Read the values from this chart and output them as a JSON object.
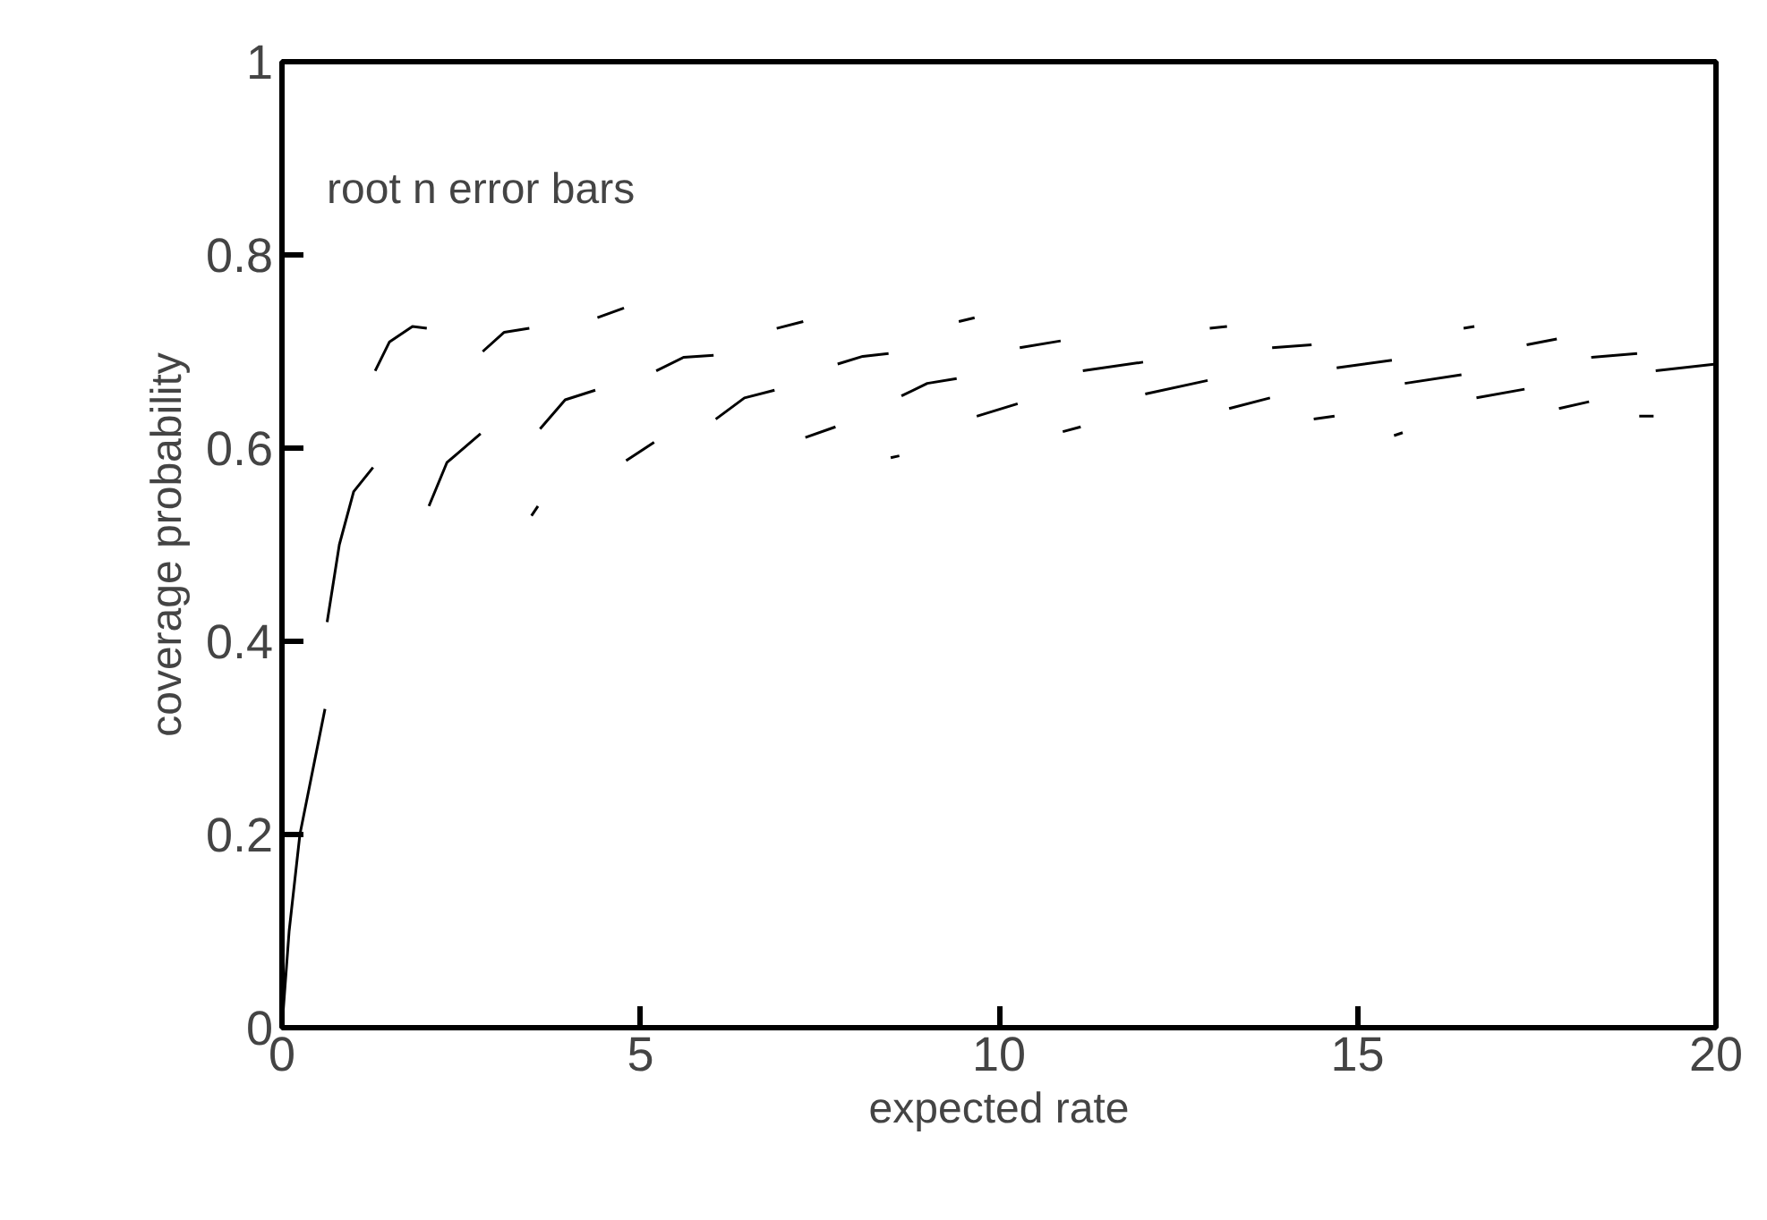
{
  "chart_data": {
    "type": "line",
    "xlabel": "expected rate",
    "ylabel": "coverage probability",
    "annotations": [
      "root  n  error  bars"
    ],
    "xlim": [
      0,
      20
    ],
    "ylim": [
      0,
      1
    ],
    "xticks": [
      0,
      5,
      10,
      15,
      20
    ],
    "yticks": [
      0,
      0.2,
      0.4,
      0.6,
      0.8,
      1
    ],
    "grid": false,
    "line_style": "solid",
    "marker": "none",
    "series": [
      {
        "color": "#000000",
        "x": [
          0,
          0.1,
          0.25,
          0.6,
          0.61,
          0.63,
          0.8,
          1.0,
          1.27,
          1.28,
          1.3,
          1.5,
          1.82,
          2.02,
          2.03,
          2.05,
          2.3,
          2.77,
          2.78,
          2.8,
          3.1,
          3.45,
          3.46,
          3.48,
          3.57,
          3.58,
          3.6,
          3.95,
          4.37,
          4.38,
          4.4,
          4.77,
          4.78,
          4.8,
          5.19,
          5.2,
          5.22,
          5.6,
          6.02,
          6.03,
          6.05,
          6.45,
          6.87,
          6.88,
          6.9,
          7.27,
          7.28,
          7.3,
          7.72,
          7.73,
          7.75,
          8.1,
          8.46,
          8.47,
          8.49,
          8.61,
          8.62,
          8.64,
          9.0,
          9.41,
          9.42,
          9.44,
          9.66,
          9.67,
          9.69,
          10.26,
          10.27,
          10.29,
          10.86,
          10.87,
          10.89,
          11.14,
          11.15,
          11.17,
          12.01,
          12.02,
          12.04,
          12.91,
          12.92,
          12.94,
          13.18,
          13.19,
          13.21,
          13.78,
          13.79,
          13.81,
          14.36,
          14.37,
          14.39,
          14.68,
          14.69,
          14.71,
          15.48,
          15.49,
          15.51,
          15.63,
          15.64,
          15.66,
          16.45,
          16.46,
          16.48,
          16.63,
          16.64,
          16.66,
          17.33,
          17.34,
          17.36,
          17.78,
          17.79,
          17.81,
          18.23,
          18.24,
          18.26,
          18.9,
          18.91,
          18.93,
          19.13,
          19.14,
          19.16,
          20
        ],
        "values": [
          0,
          0.1,
          0.2,
          0.33,
          null,
          0.42,
          0.5,
          0.555,
          0.58,
          null,
          0.68,
          0.71,
          0.726,
          0.724,
          null,
          0.54,
          0.585,
          0.615,
          null,
          0.7,
          0.72,
          0.724,
          null,
          0.53,
          0.54,
          null,
          0.62,
          0.65,
          0.66,
          null,
          0.735,
          0.745,
          null,
          0.587,
          0.606,
          null,
          0.68,
          0.694,
          0.696,
          null,
          0.63,
          0.652,
          0.66,
          null,
          0.724,
          0.731,
          null,
          0.611,
          0.622,
          null,
          0.687,
          0.695,
          0.698,
          null,
          0.59,
          0.592,
          null,
          0.654,
          0.667,
          0.672,
          null,
          0.731,
          0.735,
          null,
          0.633,
          0.646,
          null,
          0.704,
          0.711,
          null,
          0.617,
          0.622,
          null,
          0.68,
          0.689,
          null,
          0.656,
          0.67,
          null,
          0.724,
          0.726,
          null,
          0.641,
          0.652,
          null,
          0.704,
          0.707,
          null,
          0.63,
          0.633,
          null,
          0.683,
          0.691,
          null,
          0.613,
          0.616,
          null,
          0.667,
          0.676,
          null,
          0.724,
          0.726,
          null,
          0.652,
          0.661,
          null,
          0.707,
          0.713,
          null,
          0.641,
          0.648,
          null,
          0.694,
          0.698,
          null,
          0.633,
          0.633,
          null,
          0.68,
          0.687
        ]
      }
    ]
  }
}
